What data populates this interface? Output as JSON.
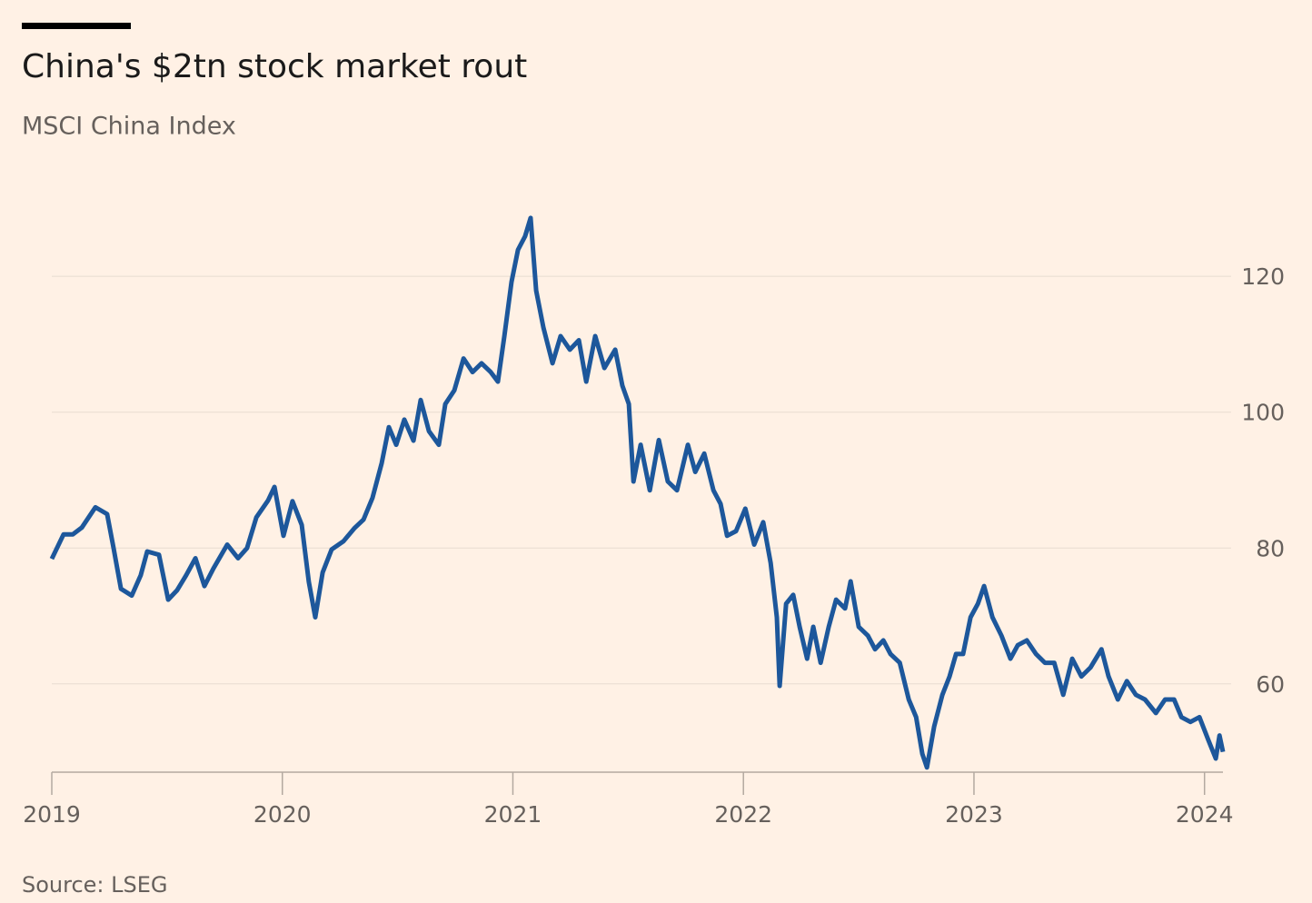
{
  "chart_data": {
    "type": "line",
    "title": "China's $2tn stock market rout",
    "subtitle": "MSCI China Index",
    "source": "Source: LSEG",
    "color": "#1d579b",
    "grid": true,
    "xlim": [
      2019,
      2024.08
    ],
    "xticks": [
      2019,
      2020,
      2021,
      2022,
      2023,
      2024
    ],
    "ylim": [
      47,
      130
    ],
    "yticks": [
      60,
      80,
      100,
      120
    ],
    "x": [
      2019,
      2019.051,
      2019.091,
      2019.13,
      2019.189,
      2019.24,
      2019.268,
      2019.3,
      2019.347,
      2019.386,
      2019.414,
      2019.465,
      2019.505,
      2019.544,
      2019.583,
      2019.623,
      2019.662,
      2019.701,
      2019.761,
      2019.808,
      2019.847,
      2019.887,
      2019.938,
      2019.966,
      2020.005,
      2020.044,
      2020.084,
      2020.115,
      2020.143,
      2020.175,
      2020.214,
      2020.265,
      2020.312,
      2020.352,
      2020.391,
      2020.431,
      2020.462,
      2020.494,
      2020.529,
      2020.569,
      2020.6,
      2020.636,
      2020.679,
      2020.707,
      2020.746,
      2020.786,
      2020.825,
      2020.864,
      2020.904,
      2020.935,
      2020.963,
      2020.994,
      2021.022,
      2021.053,
      2021.077,
      2021.101,
      2021.132,
      2021.172,
      2021.207,
      2021.247,
      2021.286,
      2021.318,
      2021.357,
      2021.397,
      2021.444,
      2021.475,
      2021.503,
      2021.523,
      2021.554,
      2021.594,
      2021.633,
      2021.672,
      2021.712,
      2021.759,
      2021.791,
      2021.83,
      2021.87,
      2021.901,
      2021.929,
      2021.968,
      2022.008,
      2022.047,
      2022.086,
      2022.118,
      2022.145,
      2022.157,
      2022.185,
      2022.216,
      2022.244,
      2022.276,
      2022.303,
      2022.335,
      2022.37,
      2022.402,
      2022.441,
      2022.465,
      2022.5,
      2022.54,
      2022.571,
      2022.607,
      2022.638,
      2022.678,
      2022.717,
      2022.749,
      2022.776,
      2022.796,
      2022.827,
      2022.863,
      2022.894,
      2022.922,
      2022.953,
      2022.985,
      2023.017,
      2023.044,
      2023.08,
      2023.119,
      2023.158,
      2023.19,
      2023.229,
      2023.269,
      2023.308,
      2023.348,
      2023.387,
      2023.426,
      2023.466,
      2023.505,
      2023.553,
      2023.584,
      2023.624,
      2023.663,
      2023.702,
      2023.742,
      2023.789,
      2023.829,
      2023.868,
      2023.9,
      2023.939,
      2023.978,
      2024.017,
      2024.049,
      2024.065,
      2024.08
    ],
    "values": [
      78.4,
      82,
      82,
      83,
      86,
      85,
      80,
      74,
      73,
      76,
      79.5,
      79,
      72.4,
      73.8,
      76,
      78.5,
      74.4,
      77,
      80.5,
      78.5,
      80,
      84.5,
      87,
      89,
      81.8,
      86.9,
      83.4,
      75,
      69.8,
      76.4,
      79.8,
      81,
      82.9,
      84.2,
      87.4,
      92.5,
      97.8,
      95.2,
      98.9,
      95.8,
      101.8,
      97.2,
      95.2,
      101.2,
      103.2,
      107.9,
      105.9,
      107.2,
      105.9,
      104.5,
      111.2,
      119.2,
      123.9,
      125.9,
      128.6,
      117.9,
      112.5,
      107.2,
      111.2,
      109.2,
      110.6,
      104.5,
      111.2,
      106.5,
      109.2,
      103.9,
      101.2,
      89.8,
      95.2,
      88.5,
      95.9,
      89.8,
      88.5,
      95.2,
      91.2,
      93.9,
      88.5,
      86.5,
      81.8,
      82.5,
      85.8,
      80.5,
      83.8,
      77.8,
      69.8,
      59.7,
      71.8,
      73.1,
      68.4,
      63.7,
      68.4,
      63.1,
      68.4,
      72.4,
      71.1,
      75.1,
      68.4,
      67.1,
      65.1,
      66.4,
      64.4,
      63.1,
      57.7,
      55.1,
      49.7,
      47.7,
      53.7,
      58.4,
      61.1,
      64.4,
      64.4,
      69.8,
      71.8,
      74.4,
      69.8,
      67.1,
      63.7,
      65.7,
      66.4,
      64.4,
      63.1,
      63.1,
      58.4,
      63.7,
      61.1,
      62.4,
      65.1,
      61.1,
      57.7,
      60.4,
      58.4,
      57.7,
      55.7,
      57.7,
      57.7,
      55.1,
      54.4,
      55.1,
      51.7,
      49,
      52.4,
      50
    ]
  }
}
